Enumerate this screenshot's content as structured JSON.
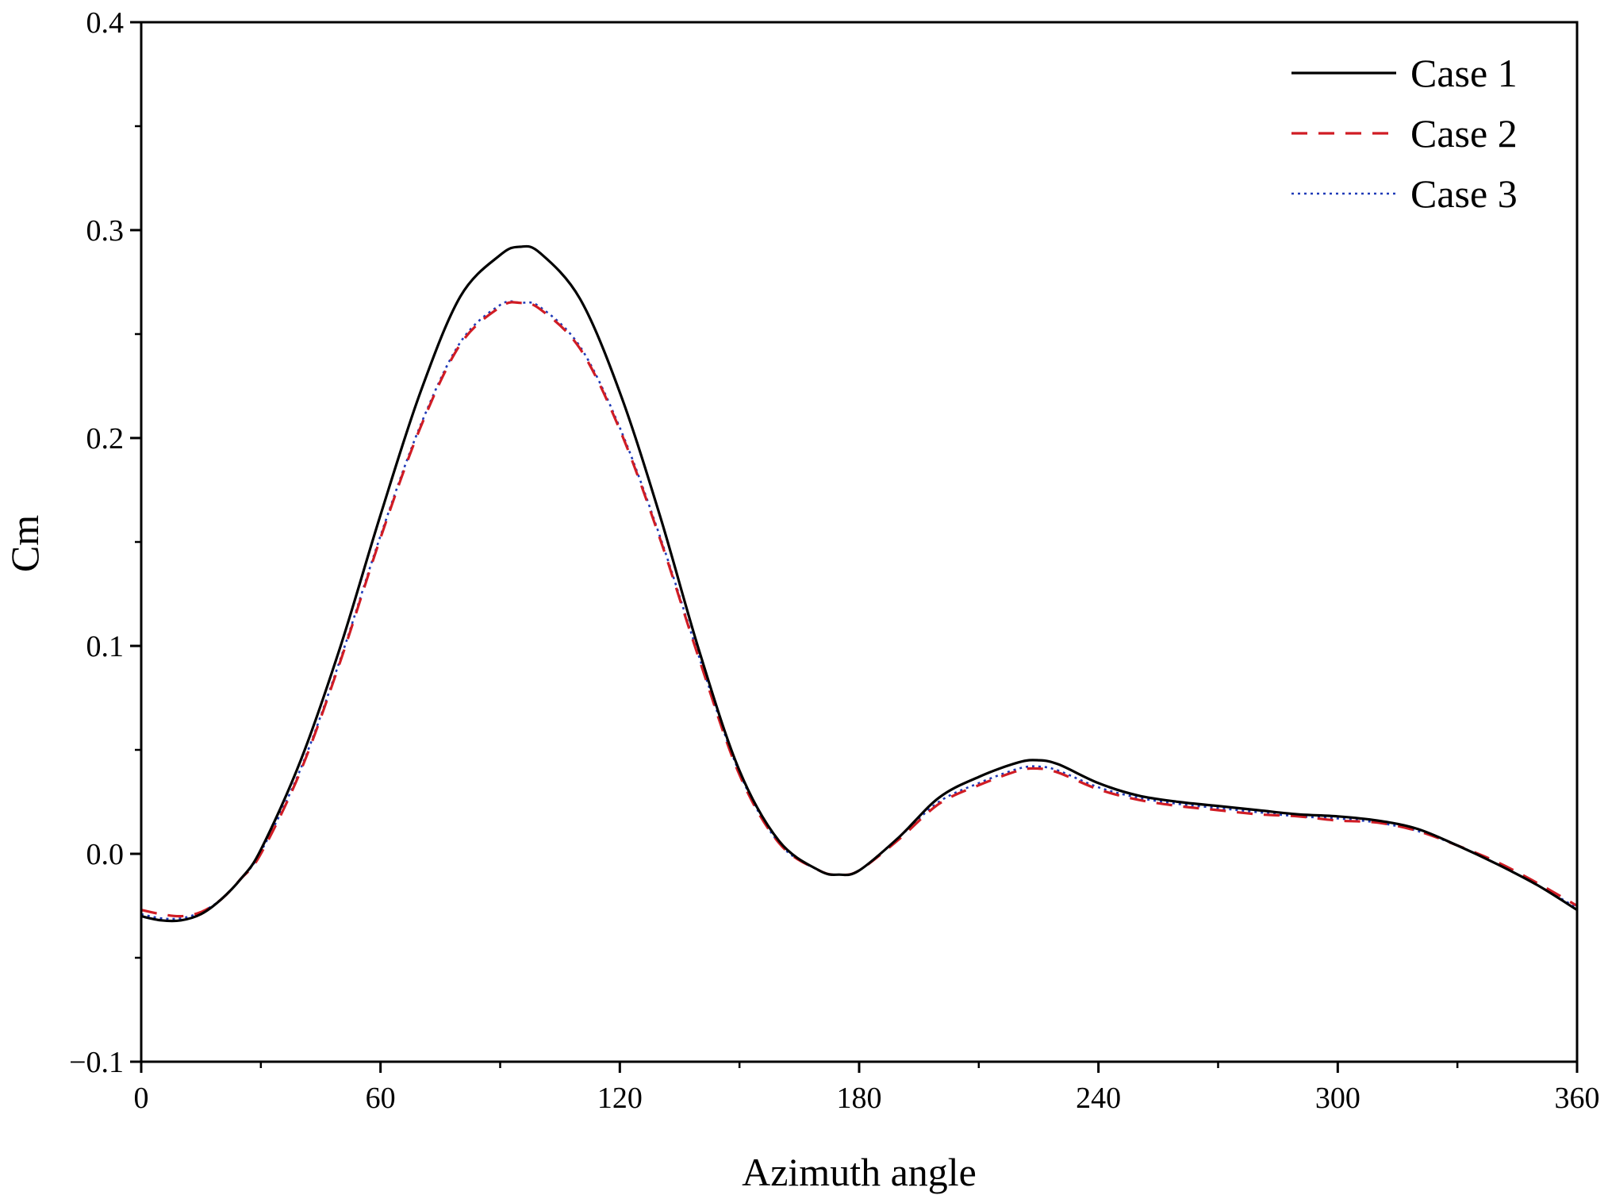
{
  "chart_data": {
    "type": "line",
    "title": "",
    "xlabel": "Azimuth angle",
    "ylabel": "Cm",
    "xlim": [
      0,
      360
    ],
    "ylim": [
      -0.1,
      0.4
    ],
    "x_ticks": [
      0,
      60,
      120,
      180,
      240,
      300,
      360
    ],
    "x_tick_labels": [
      "0",
      "60",
      "120",
      "180",
      "240",
      "300",
      "360"
    ],
    "y_ticks": [
      -0.1,
      0.0,
      0.1,
      0.2,
      0.3,
      0.4
    ],
    "y_tick_labels": [
      "−0.1",
      "0.0",
      "0.1",
      "0.2",
      "0.3",
      "0.4"
    ],
    "grid": false,
    "legend_position": "top-right",
    "series": [
      {
        "name": "Case 1",
        "color": "#000000",
        "style": "solid",
        "x": [
          0,
          5,
          10,
          15,
          20,
          25,
          30,
          40,
          50,
          60,
          70,
          80,
          90,
          95,
          100,
          110,
          120,
          130,
          140,
          150,
          160,
          170,
          175,
          180,
          190,
          200,
          210,
          220,
          225,
          230,
          240,
          250,
          260,
          270,
          280,
          290,
          300,
          310,
          320,
          330,
          340,
          350,
          360
        ],
        "y": [
          -0.03,
          -0.032,
          -0.032,
          -0.029,
          -0.022,
          -0.012,
          0.002,
          0.045,
          0.1,
          0.163,
          0.222,
          0.268,
          0.288,
          0.292,
          0.289,
          0.267,
          0.222,
          0.163,
          0.097,
          0.04,
          0.006,
          -0.008,
          -0.01,
          -0.008,
          0.008,
          0.027,
          0.037,
          0.044,
          0.045,
          0.043,
          0.034,
          0.028,
          0.025,
          0.023,
          0.021,
          0.019,
          0.018,
          0.016,
          0.012,
          0.004,
          -0.005,
          -0.015,
          -0.027
        ]
      },
      {
        "name": "Case 2",
        "color": "#d01c24",
        "style": "dashed",
        "x": [
          0,
          5,
          10,
          15,
          20,
          25,
          30,
          40,
          50,
          60,
          70,
          80,
          90,
          95,
          100,
          110,
          120,
          130,
          140,
          150,
          160,
          170,
          175,
          180,
          190,
          200,
          210,
          220,
          225,
          230,
          240,
          250,
          260,
          270,
          280,
          290,
          300,
          310,
          320,
          330,
          340,
          350,
          360
        ],
        "y": [
          -0.027,
          -0.029,
          -0.03,
          -0.028,
          -0.022,
          -0.012,
          0.0,
          0.04,
          0.093,
          0.152,
          0.205,
          0.245,
          0.263,
          0.265,
          0.262,
          0.243,
          0.204,
          0.152,
          0.093,
          0.038,
          0.005,
          -0.008,
          -0.01,
          -0.008,
          0.007,
          0.024,
          0.033,
          0.04,
          0.041,
          0.039,
          0.031,
          0.026,
          0.023,
          0.021,
          0.019,
          0.018,
          0.016,
          0.015,
          0.011,
          0.004,
          -0.004,
          -0.014,
          -0.025
        ]
      },
      {
        "name": "Case 3",
        "color": "#1f3ab8",
        "style": "dotted",
        "x": [
          0,
          5,
          10,
          15,
          20,
          25,
          30,
          40,
          50,
          60,
          70,
          80,
          90,
          95,
          100,
          110,
          120,
          130,
          140,
          150,
          160,
          170,
          175,
          180,
          190,
          200,
          210,
          220,
          225,
          230,
          240,
          250,
          260,
          270,
          280,
          290,
          300,
          310,
          320,
          330,
          340,
          350,
          360
        ],
        "y": [
          -0.029,
          -0.031,
          -0.031,
          -0.028,
          -0.022,
          -0.012,
          0.001,
          0.041,
          0.094,
          0.153,
          0.206,
          0.246,
          0.264,
          0.265,
          0.263,
          0.244,
          0.205,
          0.153,
          0.094,
          0.039,
          0.005,
          -0.008,
          -0.01,
          -0.008,
          0.008,
          0.025,
          0.034,
          0.041,
          0.042,
          0.04,
          0.032,
          0.027,
          0.024,
          0.022,
          0.02,
          0.018,
          0.017,
          0.015,
          0.011,
          0.004,
          -0.005,
          -0.015,
          -0.026
        ]
      }
    ]
  }
}
